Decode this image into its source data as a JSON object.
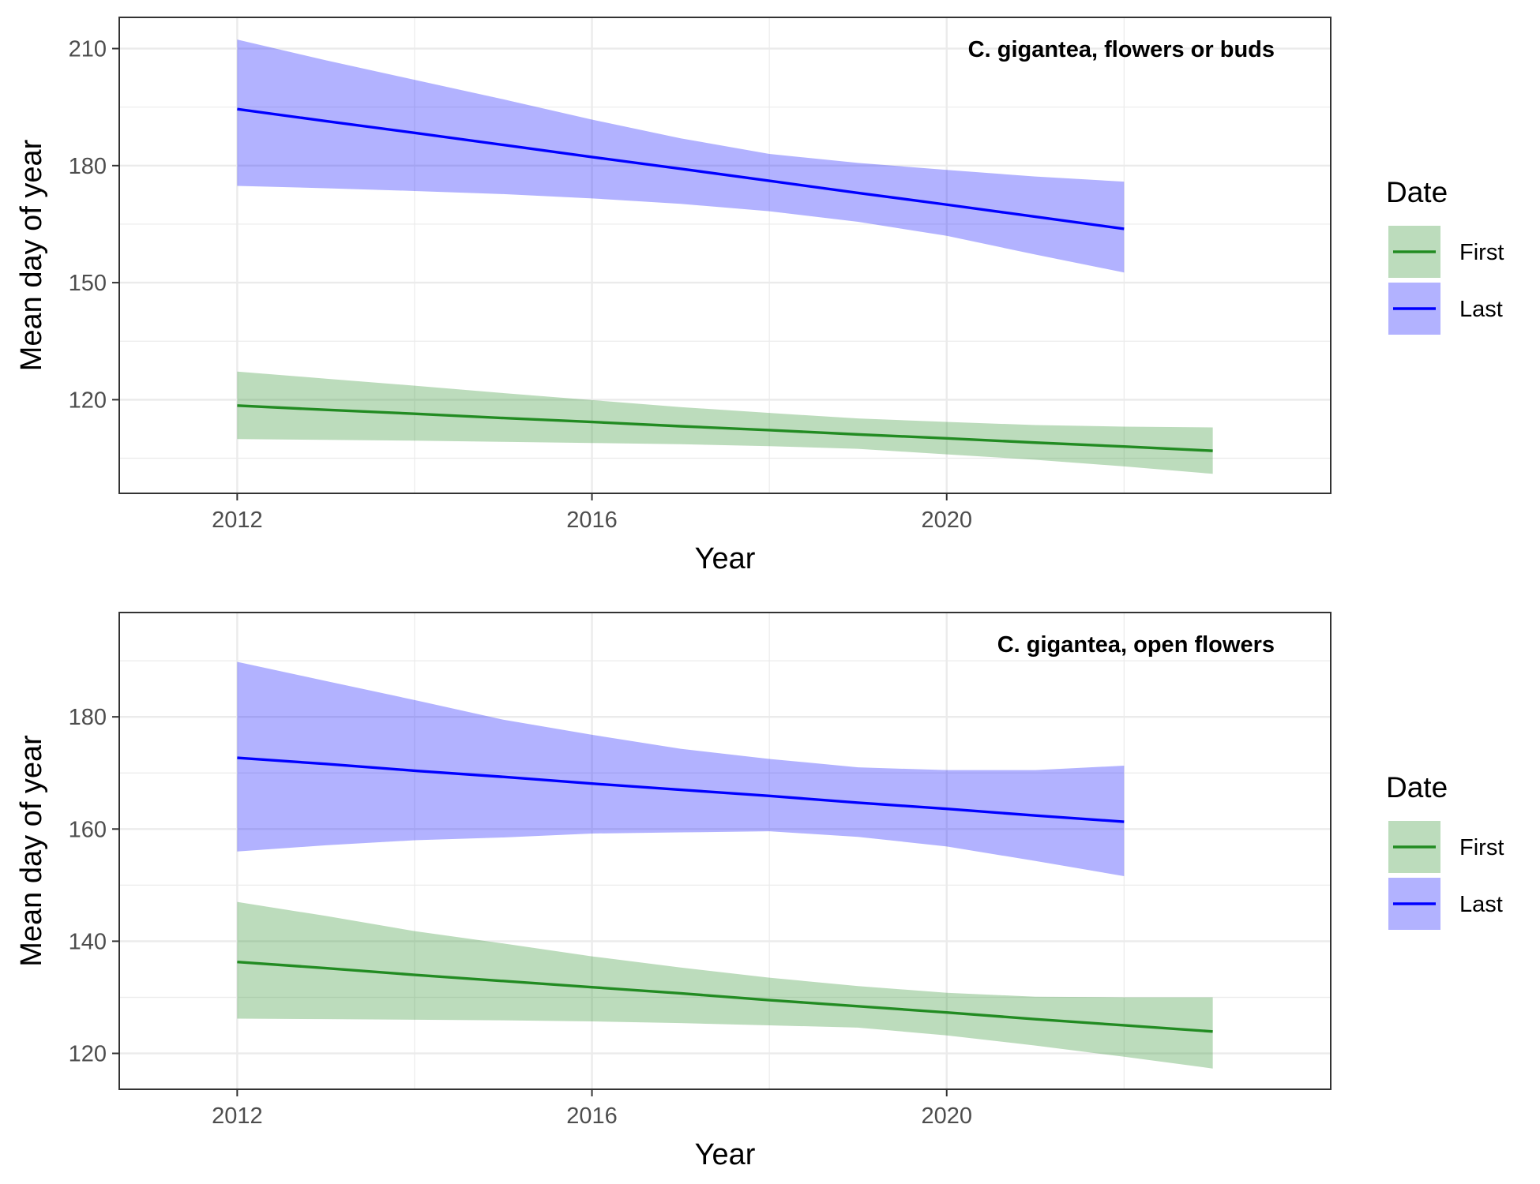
{
  "chart_data": [
    {
      "type": "line",
      "title": "C. gigantea, flowers or buds",
      "xlabel": "Year",
      "ylabel": "Mean day of year",
      "xlim": [
        2010.67,
        2024.33
      ],
      "ylim": [
        96,
        218
      ],
      "x_ticks": [
        2012,
        2016,
        2020
      ],
      "x_tick_labels": [
        "2012",
        "2016",
        "2020"
      ],
      "y_ticks": [
        120,
        150,
        180,
        210
      ],
      "y_tick_labels": [
        "120",
        "150",
        "180",
        "210"
      ],
      "grid": true,
      "legend_placement": "right",
      "series": [
        {
          "name": "Last",
          "color": "#0000FF",
          "fill": "#0000FF",
          "x": [
            2012,
            2013,
            2014,
            2015,
            2016,
            2017,
            2018,
            2019,
            2020,
            2021,
            2022
          ],
          "y": [
            194.5,
            191.4,
            188.4,
            185.3,
            182.2,
            179.2,
            176.1,
            173.0,
            170.0,
            166.9,
            163.8
          ],
          "upper": [
            212.3,
            207.0,
            202.0,
            197.0,
            191.8,
            187.0,
            183.0,
            180.7,
            178.9,
            177.2,
            175.9
          ],
          "lower": [
            174.8,
            174.2,
            173.5,
            172.7,
            171.6,
            170.2,
            168.3,
            165.6,
            162.0,
            157.2,
            152.6
          ]
        },
        {
          "name": "First",
          "color": "#228B22",
          "fill": "#228B22",
          "x": [
            2012,
            2013,
            2014,
            2015,
            2016,
            2017,
            2018,
            2019,
            2020,
            2021,
            2022,
            2023
          ],
          "y": [
            118.5,
            117.4,
            116.4,
            115.3,
            114.3,
            113.2,
            112.2,
            111.1,
            110.1,
            109.0,
            108.0,
            106.9
          ],
          "upper": [
            127.2,
            125.4,
            123.6,
            121.7,
            119.9,
            118.1,
            116.6,
            115.2,
            114.3,
            113.5,
            113.1,
            112.9
          ],
          "lower": [
            109.9,
            109.7,
            109.5,
            109.2,
            108.9,
            108.6,
            108.1,
            107.4,
            106.0,
            104.6,
            102.9,
            101.0
          ]
        }
      ]
    },
    {
      "type": "line",
      "title": "C. gigantea, open flowers",
      "xlabel": "Year",
      "ylabel": "Mean day of year",
      "xlim": [
        2010.67,
        2024.33
      ],
      "ylim": [
        113.6,
        198.6
      ],
      "x_ticks": [
        2012,
        2016,
        2020
      ],
      "x_tick_labels": [
        "2012",
        "2016",
        "2020"
      ],
      "y_ticks": [
        120,
        140,
        160,
        180
      ],
      "y_tick_labels": [
        "120",
        "140",
        "160",
        "180"
      ],
      "grid": true,
      "legend_placement": "right",
      "series": [
        {
          "name": "Last",
          "color": "#0000FF",
          "fill": "#0000FF",
          "x": [
            2012,
            2013,
            2014,
            2015,
            2016,
            2017,
            2018,
            2019,
            2020,
            2021,
            2022
          ],
          "y": [
            172.7,
            171.6,
            170.4,
            169.3,
            168.1,
            167.0,
            165.9,
            164.7,
            163.6,
            162.4,
            161.3
          ],
          "upper": [
            189.8,
            186.4,
            183.0,
            179.5,
            176.8,
            174.3,
            172.5,
            171.0,
            170.5,
            170.5,
            171.3
          ],
          "lower": [
            156.0,
            157.1,
            158.0,
            158.5,
            159.2,
            159.4,
            159.6,
            158.6,
            156.9,
            154.3,
            151.6
          ]
        },
        {
          "name": "First",
          "color": "#228B22",
          "fill": "#228B22",
          "x": [
            2012,
            2013,
            2014,
            2015,
            2016,
            2017,
            2018,
            2019,
            2020,
            2021,
            2022,
            2023
          ],
          "y": [
            136.3,
            135.2,
            134.0,
            132.9,
            131.8,
            130.7,
            129.5,
            128.4,
            127.3,
            126.1,
            125.0,
            123.9
          ],
          "upper": [
            147.0,
            144.5,
            141.8,
            139.6,
            137.3,
            135.3,
            133.5,
            132.0,
            130.8,
            130.1,
            130.0,
            130.0
          ],
          "lower": [
            126.2,
            126.1,
            126.0,
            125.9,
            125.7,
            125.4,
            125.0,
            124.6,
            123.2,
            121.4,
            119.4,
            117.3
          ]
        }
      ]
    }
  ],
  "legend": {
    "title": "Date",
    "items": [
      {
        "label": "First",
        "line_color": "#228B22",
        "fill_color": "#228B22"
      },
      {
        "label": "Last",
        "line_color": "#0000FF",
        "fill_color": "#0000FF"
      }
    ]
  }
}
